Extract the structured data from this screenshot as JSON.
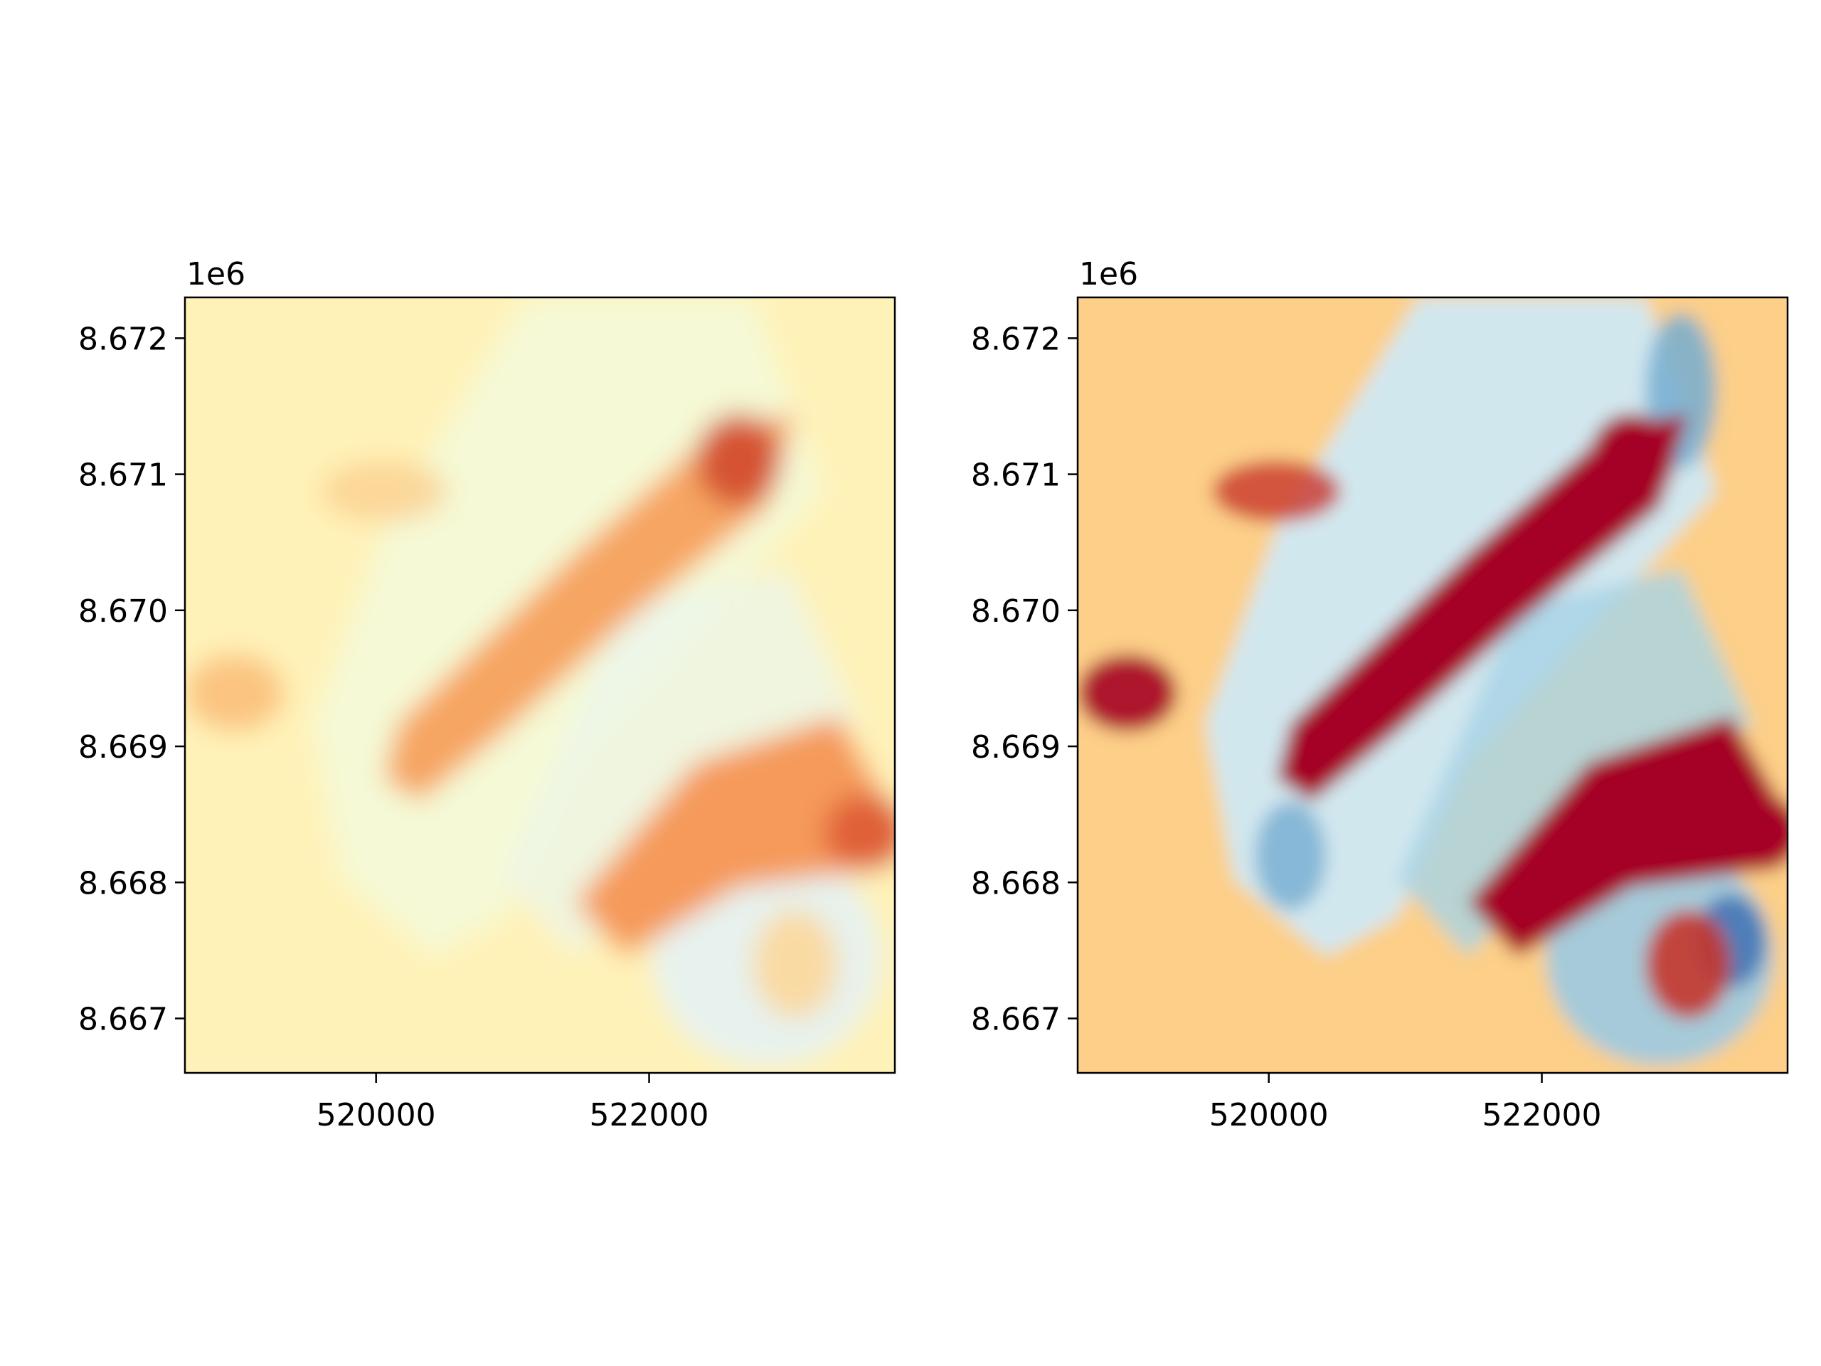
{
  "figure": {
    "background": "#ffffff",
    "colormap": "RdYlBu",
    "colormap_stops": [
      "#a50026",
      "#d73027",
      "#f46d43",
      "#fdae61",
      "#fee090",
      "#ffffbf",
      "#e0f3f8",
      "#abd9e9",
      "#74add1",
      "#4575b4",
      "#313695"
    ]
  },
  "chart_data": [
    {
      "type": "heatmap",
      "title": "",
      "xlabel": "",
      "ylabel": "",
      "xlim": [
        518600,
        523800
      ],
      "ylim": [
        8666600,
        8672300
      ],
      "xticks": [
        520000,
        522000
      ],
      "xtick_labels": [
        "520000",
        "522000"
      ],
      "yticks": [
        8667000,
        8668000,
        8669000,
        8670000,
        8671000,
        8672000
      ],
      "ytick_labels": [
        "8.667",
        "8.668",
        "8.669",
        "8.670",
        "8.671",
        "8.672"
      ],
      "y_offset_label": "1e6",
      "grid": false,
      "legend": "none",
      "colormap": "RdYlBu",
      "color_scale": "narrow (mostly pale yellows and oranges)"
    },
    {
      "type": "heatmap",
      "title": "",
      "xlabel": "",
      "ylabel": "",
      "xlim": [
        518600,
        523800
      ],
      "ylim": [
        8666600,
        8672300
      ],
      "xticks": [
        520000,
        522000
      ],
      "xtick_labels": [
        "520000",
        "522000"
      ],
      "yticks": [
        8667000,
        8668000,
        8669000,
        8670000,
        8671000,
        8672000
      ],
      "ytick_labels": [
        "8.667",
        "8.668",
        "8.669",
        "8.670",
        "8.671",
        "8.672"
      ],
      "y_offset_label": "1e6",
      "grid": false,
      "legend": "none",
      "colormap": "RdYlBu",
      "color_scale": "saturated (deep reds and blues)"
    }
  ]
}
